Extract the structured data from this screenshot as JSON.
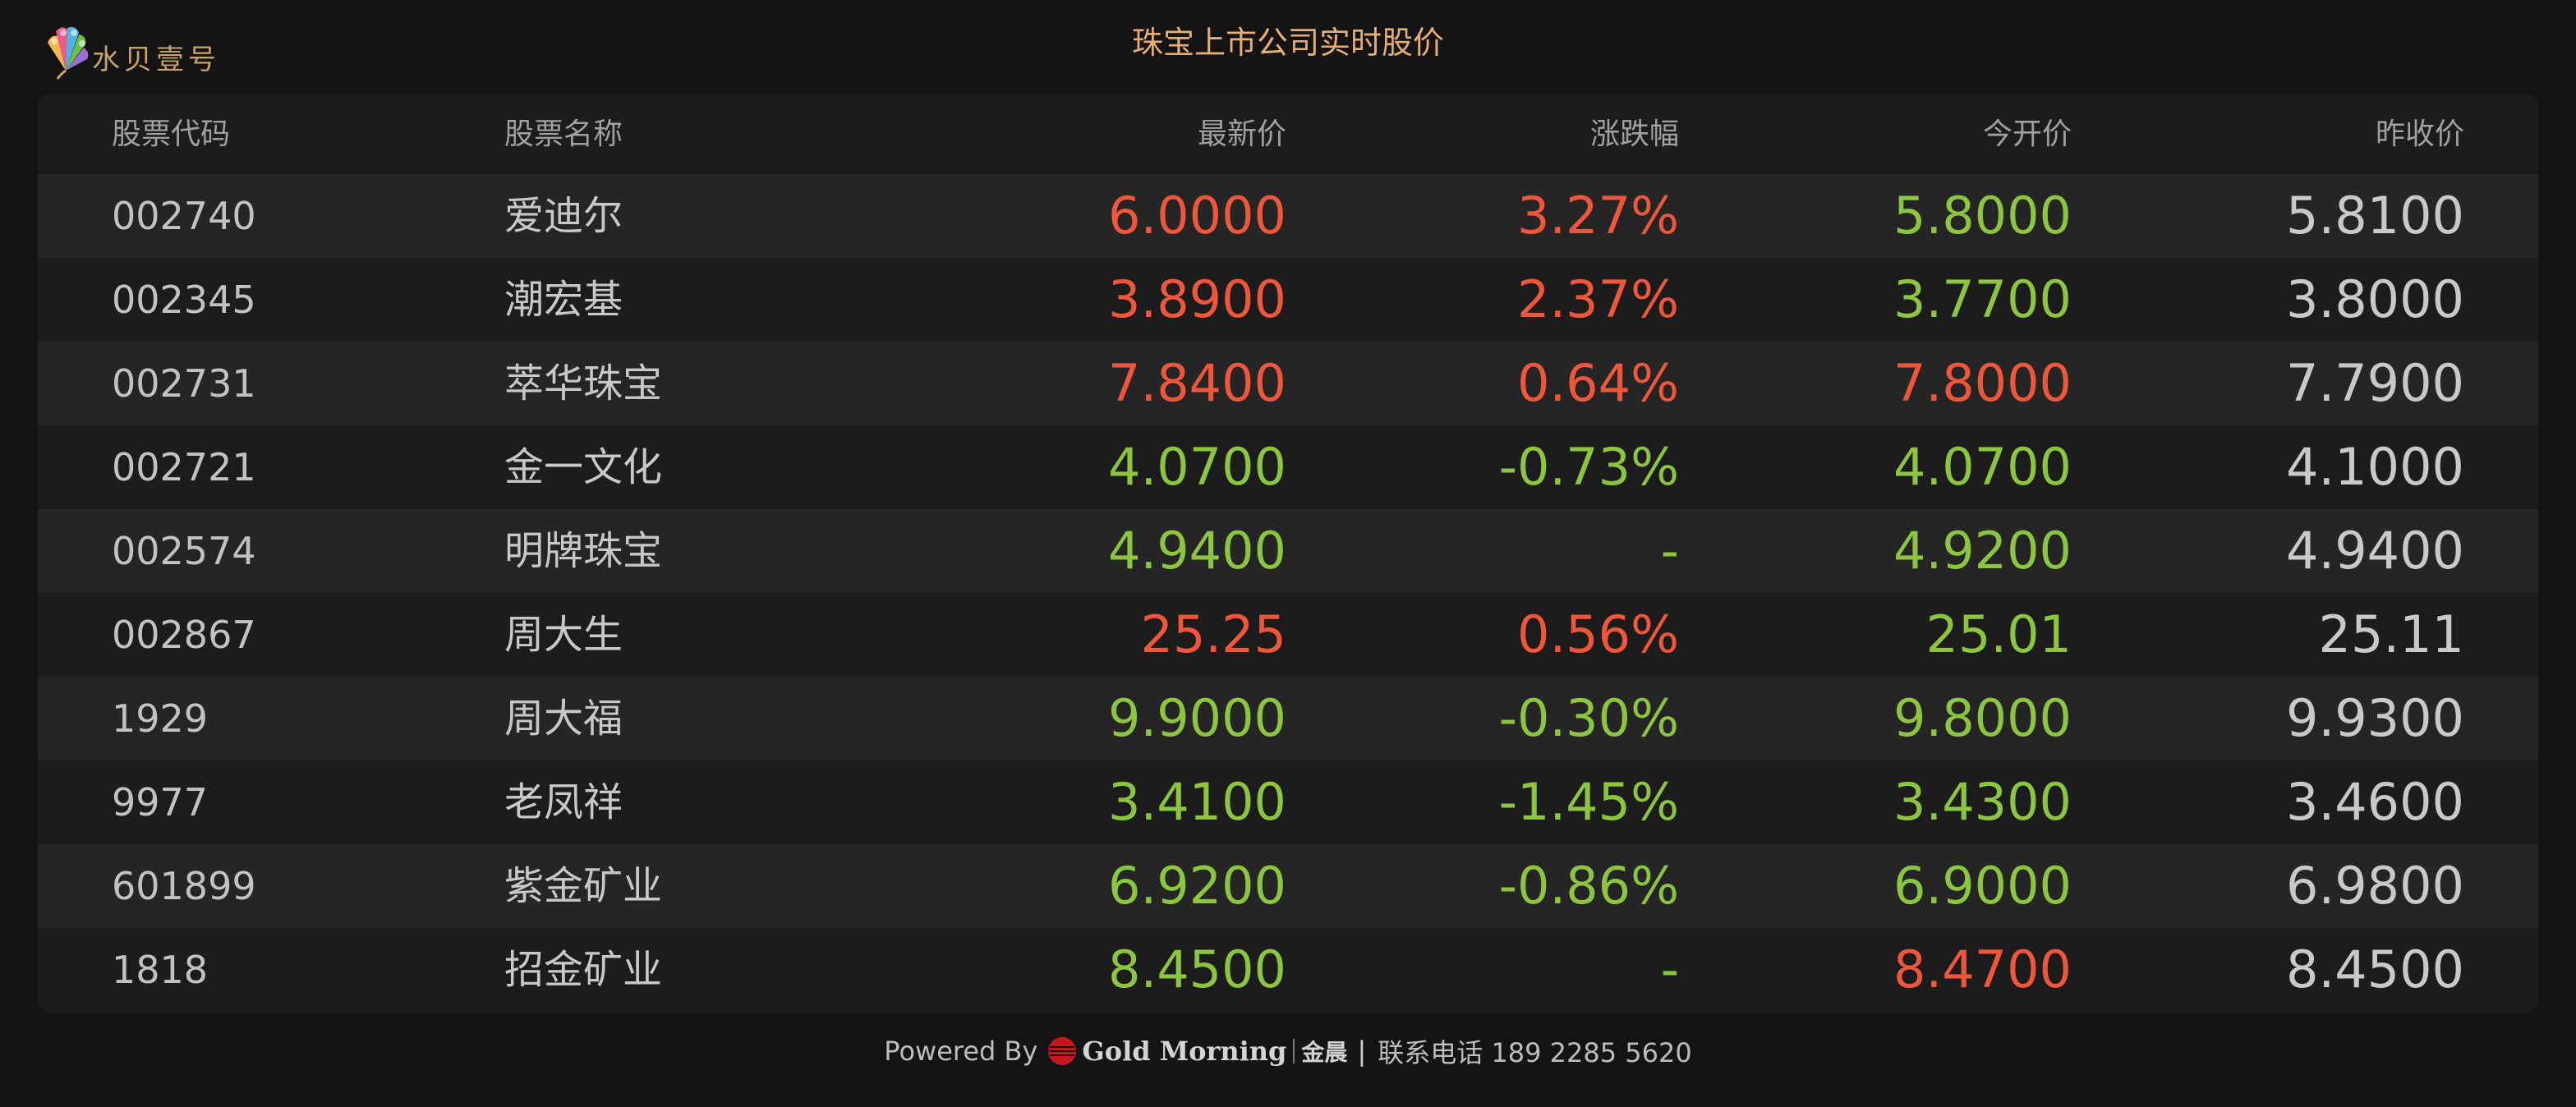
{
  "brand": {
    "logo_text": "水贝壹号",
    "logo_icon": "peacock-fan-icon"
  },
  "page": {
    "title": "珠宝上市公司实时股价"
  },
  "colors": {
    "up": "#f0573a",
    "down": "#8cc63f",
    "neutral": "#c9c9c9",
    "title": "#e6ae76"
  },
  "table": {
    "headers": {
      "code": "股票代码",
      "name": "股票名称",
      "price": "最新价",
      "change": "涨跌幅",
      "open": "今开价",
      "prev_close": "昨收价"
    },
    "rows": [
      {
        "code": "002740",
        "name": "爱迪尔",
        "price": "6.0000",
        "price_trend": "up",
        "change": "3.27%",
        "change_trend": "up",
        "open": "5.8000",
        "open_trend": "down",
        "prev_close": "5.8100"
      },
      {
        "code": "002345",
        "name": "潮宏基",
        "price": "3.8900",
        "price_trend": "up",
        "change": "2.37%",
        "change_trend": "up",
        "open": "3.7700",
        "open_trend": "down",
        "prev_close": "3.8000"
      },
      {
        "code": "002731",
        "name": "萃华珠宝",
        "price": "7.8400",
        "price_trend": "up",
        "change": "0.64%",
        "change_trend": "up",
        "open": "7.8000",
        "open_trend": "up",
        "prev_close": "7.7900"
      },
      {
        "code": "002721",
        "name": "金一文化",
        "price": "4.0700",
        "price_trend": "down",
        "change": "-0.73%",
        "change_trend": "down",
        "open": "4.0700",
        "open_trend": "down",
        "prev_close": "4.1000"
      },
      {
        "code": "002574",
        "name": "明牌珠宝",
        "price": "4.9400",
        "price_trend": "down",
        "change": "-",
        "change_trend": "down",
        "open": "4.9200",
        "open_trend": "down",
        "prev_close": "4.9400"
      },
      {
        "code": "002867",
        "name": "周大生",
        "price": "25.25",
        "price_trend": "up",
        "change": "0.56%",
        "change_trend": "up",
        "open": "25.01",
        "open_trend": "down",
        "prev_close": "25.11"
      },
      {
        "code": "1929",
        "name": "周大福",
        "price": "9.9000",
        "price_trend": "down",
        "change": "-0.30%",
        "change_trend": "down",
        "open": "9.8000",
        "open_trend": "down",
        "prev_close": "9.9300"
      },
      {
        "code": "9977",
        "name": "老凤祥",
        "price": "3.4100",
        "price_trend": "down",
        "change": "-1.45%",
        "change_trend": "down",
        "open": "3.4300",
        "open_trend": "down",
        "prev_close": "3.4600"
      },
      {
        "code": "601899",
        "name": "紫金矿业",
        "price": "6.9200",
        "price_trend": "down",
        "change": "-0.86%",
        "change_trend": "down",
        "open": "6.9000",
        "open_trend": "down",
        "prev_close": "6.9800"
      },
      {
        "code": "1818",
        "name": "招金矿业",
        "price": "8.4500",
        "price_trend": "down",
        "change": "-",
        "change_trend": "down",
        "open": "8.4700",
        "open_trend": "up",
        "prev_close": "8.4500"
      }
    ]
  },
  "footer": {
    "powered_by": "Powered By",
    "brand_icon": "gold-morning-globe-icon",
    "brand_name": "Gold Morning",
    "brand_cn": "金晨",
    "separator": "|",
    "contact": "联系电话 189 2285 5620"
  }
}
